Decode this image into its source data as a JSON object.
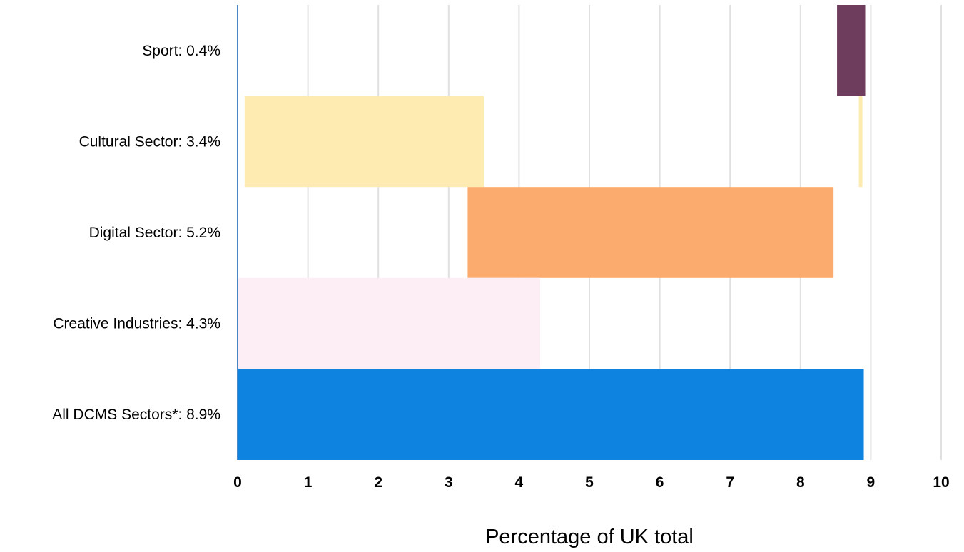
{
  "chart_data": {
    "type": "bar",
    "orientation": "horizontal",
    "title": "",
    "xlabel": "Percentage of UK total",
    "ylabel": "",
    "xlim": [
      0,
      10
    ],
    "xticks": [
      "0",
      "1",
      "2",
      "3",
      "4",
      "5",
      "6",
      "7",
      "8",
      "9",
      "10"
    ],
    "grid": true,
    "legend": "none",
    "categories": [
      "Sport: 0.4%",
      "Cultural Sector: 3.4%",
      "Digital Sector: 5.2%",
      "Creative Industries: 4.3%",
      "All DCMS Sectors*: 8.9%"
    ],
    "bars": [
      {
        "start": 8.52,
        "end": 8.92,
        "color": "#6e3c5c"
      },
      {
        "start": 0.1,
        "end": 3.5,
        "color": "#feebb2"
      },
      {
        "start": 3.27,
        "end": 8.47,
        "color": "#fbab6d"
      },
      {
        "start": 0.0,
        "end": 4.3,
        "color": "#fdeef5"
      },
      {
        "start": 0.0,
        "end": 8.9,
        "color": "#0e83df"
      }
    ],
    "colors": {
      "grid": "#e0e0e0",
      "axis": "#4a86c5"
    }
  }
}
